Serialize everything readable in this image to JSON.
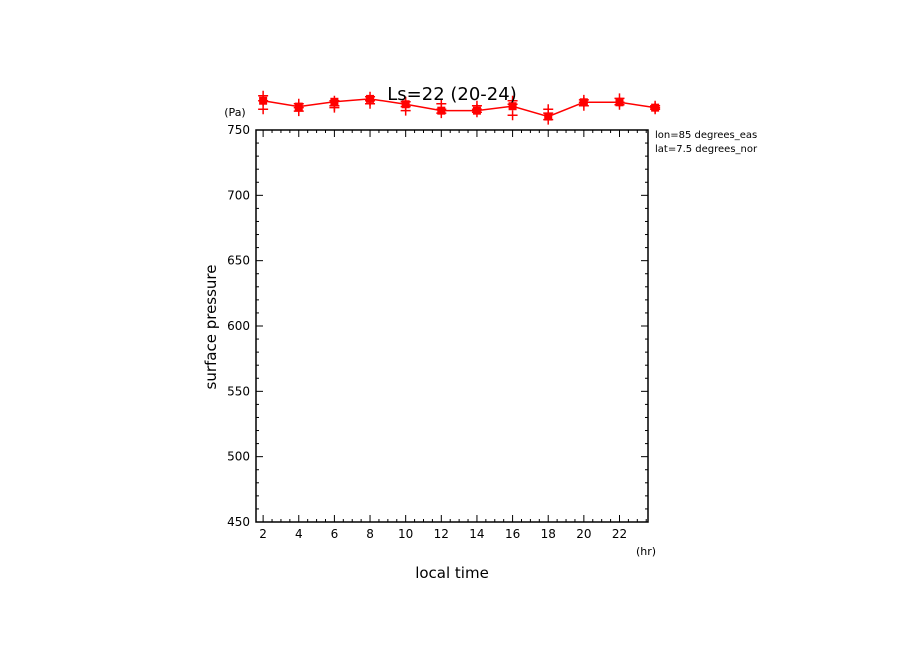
{
  "chart_data": {
    "type": "line",
    "title": "Ls=22 (20-24)",
    "xlabel": "local time",
    "ylabel": "surface pressure",
    "x_unit": "(hr)",
    "y_unit": "(Pa)",
    "xlim": [
      1.6,
      23.6
    ],
    "ylim": [
      450,
      750
    ],
    "xticks": [
      2,
      4,
      6,
      8,
      10,
      12,
      14,
      16,
      18,
      20,
      22
    ],
    "yticks": [
      450,
      500,
      550,
      600,
      650,
      700,
      750
    ],
    "grid": false,
    "annotations": [
      "lon=85 degrees_eas",
      "lat=7.5 degrees_nor"
    ],
    "series": [
      {
        "color": "#ff0000",
        "x": [
          2,
          4,
          6,
          8,
          10,
          12,
          14,
          16,
          18,
          20,
          22,
          24
        ],
        "y": [
          772.4,
          767.9,
          771.6,
          773.8,
          769.7,
          764.8,
          764.8,
          768.2,
          760.3,
          771.2,
          771.2,
          767.1
        ],
        "spread": [
          [
            776.2,
            772.4,
            765.9
          ],
          [
            770.1,
            767.1,
            764.4
          ],
          [
            772.4,
            768.6,
            767.1
          ],
          [
            775.4,
            772.4,
            770.1
          ],
          [
            771.6,
            767.9,
            764.8
          ],
          [
            770.1,
            765.9,
            762.9
          ],
          [
            768.6,
            765.9,
            763.6
          ],
          [
            772.4,
            769.7,
            761.3
          ],
          [
            765.9,
            762.9,
            757.9
          ],
          [
            773.1,
            771.2,
            768.6
          ],
          [
            774.2,
            771.2,
            769.3
          ],
          [
            768.6,
            767.1,
            765.9
          ]
        ]
      }
    ]
  }
}
